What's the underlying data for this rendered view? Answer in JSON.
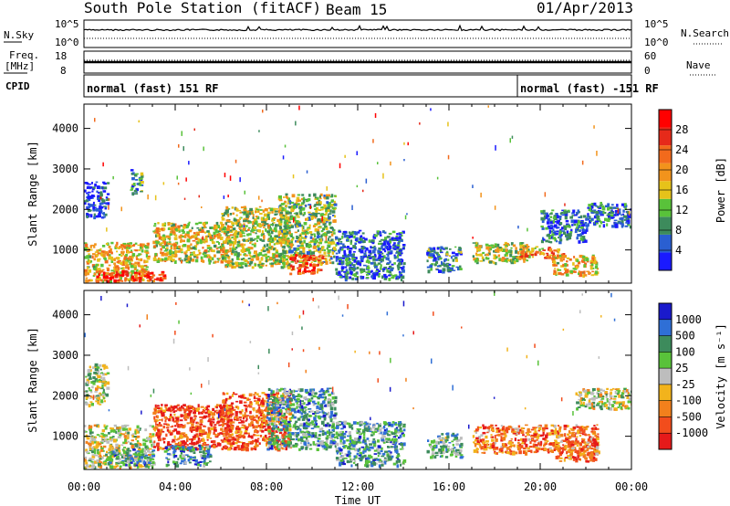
{
  "header": {
    "station": "South Pole Station (fitACF)",
    "beam": "Beam 15",
    "date": "01/Apr/2013"
  },
  "strip_labels": {
    "nsky": "N.Sky",
    "nsearch": "N.Search",
    "freq_line1": "Freq.",
    "freq_line2": "[MHz]",
    "nave": "Nave",
    "cpid": "CPID",
    "left_top_1": "10^5",
    "left_bot_1": "10^0",
    "right_top_1": "10^5",
    "right_bot_1": "10^0",
    "left_top_2": "18",
    "left_bot_2": "8",
    "right_top_2": "60",
    "right_bot_2": "0"
  },
  "cpid_segments": [
    {
      "label": "normal (fast) 151 RF",
      "start_hour": 0
    },
    {
      "label": "normal (fast) -151 RF",
      "start_hour": 19.0
    }
  ],
  "colors": {
    "power": [
      "#1a1aff",
      "#2a5fd1",
      "#3d8b5c",
      "#59c23a",
      "#e6c21a",
      "#f2931c",
      "#f26a1c",
      "#e62a1a",
      "#ff0000"
    ],
    "velocity": [
      "#1a1acc",
      "#2f6fd6",
      "#3d8b5c",
      "#59c23a",
      "#bdbdbd",
      "#f2b31c",
      "#f2801c",
      "#f24d1c",
      "#e61a1a"
    ]
  },
  "chart_data": [
    {
      "type": "heatmap",
      "name": "Power",
      "xlabel": "Time UT",
      "ylabel": "Slant Range [km]",
      "x_ticks": [
        "00:00",
        "04:00",
        "08:00",
        "12:00",
        "16:00",
        "20:00",
        "00:00"
      ],
      "xlim_hours": [
        0,
        24
      ],
      "y_ticks": [
        1000,
        2000,
        3000,
        4000
      ],
      "ylim_km": [
        180,
        4600
      ],
      "colorbar": {
        "label": "Power [dB]",
        "ticks": [
          "4",
          "8",
          "12",
          "16",
          "20",
          "24",
          "28"
        ]
      },
      "regions": [
        {
          "t0": 0.0,
          "t1": 2.8,
          "r0": 250,
          "r1": 1200,
          "level": 0.55
        },
        {
          "t0": 0.0,
          "t1": 1.0,
          "r0": 1800,
          "r1": 2700,
          "level": 0.1
        },
        {
          "t0": 0.5,
          "t1": 3.5,
          "r0": 250,
          "r1": 500,
          "level": 0.85
        },
        {
          "t0": 2.0,
          "t1": 2.5,
          "r0": 2400,
          "r1": 3000,
          "level": 0.25
        },
        {
          "t0": 3.0,
          "t1": 6.5,
          "r0": 700,
          "r1": 1700,
          "level": 0.5
        },
        {
          "t0": 6.0,
          "t1": 9.0,
          "r0": 600,
          "r1": 2100,
          "level": 0.45
        },
        {
          "t0": 8.5,
          "t1": 11.0,
          "r0": 700,
          "r1": 2400,
          "level": 0.4
        },
        {
          "t0": 9.0,
          "t1": 10.5,
          "r0": 400,
          "r1": 900,
          "level": 0.75
        },
        {
          "t0": 11.0,
          "t1": 14.0,
          "r0": 300,
          "r1": 1500,
          "level": 0.2
        },
        {
          "t0": 15.0,
          "t1": 16.5,
          "r0": 500,
          "r1": 1100,
          "level": 0.25
        },
        {
          "t0": 17.0,
          "t1": 19.5,
          "r0": 700,
          "r1": 1200,
          "level": 0.45
        },
        {
          "t0": 19.0,
          "t1": 21.0,
          "r0": 800,
          "r1": 1100,
          "level": 0.65
        },
        {
          "t0": 20.0,
          "t1": 22.0,
          "r0": 1200,
          "r1": 2000,
          "level": 0.2
        },
        {
          "t0": 20.5,
          "t1": 22.5,
          "r0": 400,
          "r1": 900,
          "level": 0.55
        },
        {
          "t0": 22.0,
          "t1": 24.0,
          "r0": 1600,
          "r1": 2200,
          "level": 0.2
        }
      ]
    },
    {
      "type": "heatmap",
      "name": "Velocity",
      "xlabel": "Time UT",
      "ylabel": "Slant Range [km]",
      "x_ticks": [
        "00:00",
        "04:00",
        "08:00",
        "12:00",
        "16:00",
        "20:00",
        "00:00"
      ],
      "xlim_hours": [
        0,
        24
      ],
      "y_ticks": [
        1000,
        2000,
        3000,
        4000
      ],
      "ylim_km": [
        180,
        4600
      ],
      "colorbar": {
        "label": "Velocity [m s⁻¹]",
        "ticks": [
          "1000",
          "500",
          "100",
          "25",
          "-25",
          "-100",
          "-500",
          "-1000"
        ]
      },
      "regions": [
        {
          "t0": 0.0,
          "t1": 3.0,
          "r0": 250,
          "r1": 1300,
          "level": 0.5
        },
        {
          "t0": 0.0,
          "t1": 1.0,
          "r0": 1800,
          "r1": 2800,
          "level": 0.45
        },
        {
          "t0": 1.0,
          "t1": 3.0,
          "r0": 300,
          "r1": 700,
          "level": 0.3
        },
        {
          "t0": 3.0,
          "t1": 6.5,
          "r0": 700,
          "r1": 1800,
          "level": 0.85
        },
        {
          "t0": 3.5,
          "t1": 5.5,
          "r0": 300,
          "r1": 800,
          "level": 0.25
        },
        {
          "t0": 6.0,
          "t1": 9.0,
          "r0": 700,
          "r1": 2100,
          "level": 0.8
        },
        {
          "t0": 8.0,
          "t1": 11.0,
          "r0": 700,
          "r1": 2200,
          "level": 0.3
        },
        {
          "t0": 11.0,
          "t1": 14.0,
          "r0": 300,
          "r1": 1400,
          "level": 0.3
        },
        {
          "t0": 15.0,
          "t1": 16.5,
          "r0": 500,
          "r1": 1100,
          "level": 0.35
        },
        {
          "t0": 17.0,
          "t1": 22.5,
          "r0": 600,
          "r1": 1300,
          "level": 0.75
        },
        {
          "t0": 20.5,
          "t1": 22.5,
          "r0": 400,
          "r1": 900,
          "level": 0.75
        },
        {
          "t0": 21.5,
          "t1": 24.0,
          "r0": 1700,
          "r1": 2200,
          "level": 0.5
        }
      ]
    }
  ]
}
